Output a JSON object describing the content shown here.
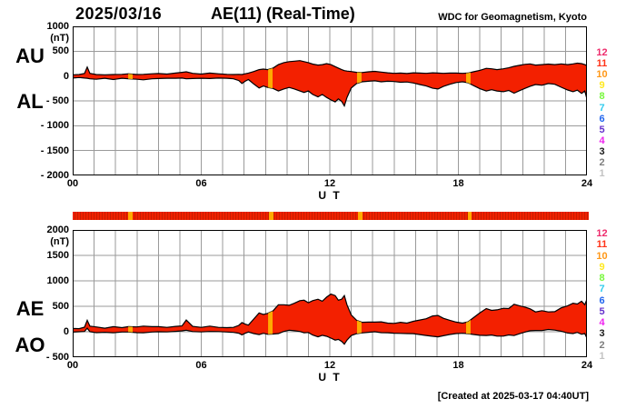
{
  "header": {
    "date": "2025/03/16",
    "title": "AE(11) (Real-Time)",
    "source": "WDC for Geomagnetism, Kyoto"
  },
  "footer": {
    "created": "[Created at 2025-03-17 04:40UT]"
  },
  "stations": {
    "labels": [
      "12",
      "11",
      "10",
      "9",
      "8",
      "7",
      "6",
      "5",
      "4",
      "3",
      "2",
      "1"
    ],
    "colors": [
      "#ee2c6c",
      "#ff3318",
      "#ff9818",
      "#ffe920",
      "#77f73c",
      "#33ccee",
      "#2266ee",
      "#6633cc",
      "#ee22ee",
      "#1a1a1a",
      "#7e7e7e",
      "#c2c2c2"
    ]
  },
  "colors": {
    "trace_fill": "#f32000",
    "trace_outline": "#000000",
    "flag": "#ffaa00",
    "grid": "#9a9a9a",
    "border": "#000000",
    "bar": "#ee2100"
  },
  "chart_data": [
    {
      "type": "area",
      "panel": "top",
      "left_labels": [
        "AU",
        "AL"
      ],
      "ylabel": "(nT)",
      "xlabel": "U T",
      "xlim": [
        0,
        24
      ],
      "ylim": [
        -2000,
        1000
      ],
      "grid": true,
      "xticks": {
        "values": [
          0,
          6,
          12,
          18,
          24
        ],
        "labels": [
          "00",
          "06",
          "12",
          "18",
          "24"
        ]
      },
      "minor_x_step_hours": 1,
      "yticks": {
        "values": [
          1000,
          500,
          0,
          -500,
          -1000,
          -1500,
          -2000
        ],
        "labels": [
          "1000",
          "500",
          "0",
          "- 500",
          "- 1000",
          "- 1500",
          "- 2000"
        ]
      },
      "highlight_times": [
        [
          2.59,
          2.8
        ],
        [
          9.12,
          9.33
        ],
        [
          13.27,
          13.48
        ],
        [
          18.36,
          18.57
        ]
      ],
      "x": [
        0.0,
        0.3,
        0.55,
        0.68,
        0.8,
        1.1,
        1.5,
        1.9,
        2.3,
        2.6,
        3.0,
        3.3,
        3.7,
        4.0,
        4.4,
        4.8,
        5.1,
        5.3,
        5.6,
        6.0,
        6.4,
        6.8,
        7.2,
        7.5,
        7.75,
        7.9,
        8.05,
        8.2,
        8.45,
        8.7,
        8.9,
        9.1,
        9.35,
        9.6,
        9.85,
        10.1,
        10.35,
        10.6,
        10.8,
        11.0,
        11.2,
        11.45,
        11.65,
        11.85,
        12.05,
        12.25,
        12.4,
        12.55,
        12.68,
        12.8,
        13.0,
        13.25,
        13.5,
        13.8,
        14.1,
        14.4,
        14.7,
        15.0,
        15.3,
        15.6,
        15.9,
        16.2,
        16.5,
        16.8,
        17.05,
        17.3,
        17.6,
        17.9,
        18.2,
        18.45,
        18.7,
        19.0,
        19.3,
        19.55,
        19.8,
        20.1,
        20.35,
        20.6,
        20.85,
        21.1,
        21.35,
        21.6,
        21.9,
        22.2,
        22.5,
        22.8,
        23.1,
        23.35,
        23.55,
        23.75,
        23.9,
        24.0
      ],
      "series": [
        {
          "name": "AU",
          "values": [
            25,
            30,
            50,
            180,
            55,
            30,
            25,
            30,
            35,
            45,
            30,
            35,
            45,
            50,
            40,
            60,
            75,
            85,
            55,
            40,
            60,
            45,
            35,
            30,
            35,
            30,
            45,
            60,
            90,
            130,
            140,
            130,
            160,
            230,
            270,
            290,
            300,
            310,
            290,
            270,
            240,
            220,
            230,
            250,
            230,
            190,
            160,
            130,
            110,
            100,
            90,
            75,
            70,
            85,
            95,
            80,
            65,
            55,
            60,
            50,
            65,
            60,
            55,
            65,
            60,
            55,
            60,
            60,
            55,
            60,
            85,
            115,
            155,
            145,
            130,
            145,
            165,
            195,
            215,
            235,
            245,
            220,
            230,
            240,
            230,
            245,
            230,
            245,
            260,
            250,
            230,
            210
          ]
        },
        {
          "name": "AL",
          "values": [
            -40,
            -30,
            -40,
            -45,
            -55,
            -65,
            -45,
            -70,
            -45,
            -55,
            -65,
            -75,
            -55,
            -50,
            -45,
            -45,
            -40,
            -55,
            -50,
            -45,
            -50,
            -40,
            -45,
            -55,
            -90,
            -150,
            -105,
            -70,
            -160,
            -240,
            -200,
            -230,
            -250,
            -300,
            -260,
            -230,
            -260,
            -300,
            -330,
            -300,
            -370,
            -420,
            -370,
            -430,
            -480,
            -520,
            -460,
            -510,
            -600,
            -430,
            -240,
            -150,
            -115,
            -105,
            -95,
            -115,
            -105,
            -110,
            -125,
            -120,
            -140,
            -170,
            -200,
            -245,
            -260,
            -210,
            -165,
            -130,
            -115,
            -135,
            -190,
            -255,
            -300,
            -275,
            -300,
            -315,
            -290,
            -345,
            -295,
            -250,
            -205,
            -170,
            -185,
            -150,
            -165,
            -225,
            -280,
            -315,
            -285,
            -350,
            -300,
            -460
          ]
        }
      ]
    },
    {
      "type": "area",
      "panel": "bottom",
      "left_labels": [
        "AE",
        "AO"
      ],
      "ylabel": "(nT)",
      "xlabel": "U T",
      "xlim": [
        0,
        24
      ],
      "ylim": [
        -500,
        2000
      ],
      "grid": true,
      "xticks": {
        "values": [
          0,
          6,
          12,
          18,
          24
        ],
        "labels": [
          "00",
          "06",
          "12",
          "18",
          "24"
        ]
      },
      "minor_x_step_hours": 1,
      "yticks": {
        "values": [
          2000,
          1500,
          1000,
          500,
          0,
          -500
        ],
        "labels": [
          "2000",
          "1500",
          "1000",
          "500",
          "0",
          "- 500"
        ]
      },
      "highlight_times": [
        [
          2.59,
          2.8
        ],
        [
          9.12,
          9.33
        ],
        [
          13.27,
          13.48
        ],
        [
          18.36,
          18.57
        ]
      ],
      "x": [
        0.0,
        0.3,
        0.55,
        0.68,
        0.8,
        1.1,
        1.5,
        1.9,
        2.3,
        2.6,
        3.0,
        3.3,
        3.7,
        4.0,
        4.4,
        4.8,
        5.1,
        5.3,
        5.6,
        6.0,
        6.4,
        6.8,
        7.2,
        7.5,
        7.75,
        7.9,
        8.05,
        8.2,
        8.45,
        8.7,
        8.9,
        9.1,
        9.35,
        9.6,
        9.85,
        10.1,
        10.35,
        10.6,
        10.8,
        11.0,
        11.2,
        11.45,
        11.65,
        11.85,
        12.05,
        12.25,
        12.4,
        12.55,
        12.68,
        12.8,
        13.0,
        13.25,
        13.5,
        13.8,
        14.1,
        14.4,
        14.7,
        15.0,
        15.3,
        15.6,
        15.9,
        16.2,
        16.5,
        16.8,
        17.05,
        17.3,
        17.6,
        17.9,
        18.2,
        18.45,
        18.7,
        19.0,
        19.3,
        19.55,
        19.8,
        20.1,
        20.35,
        20.6,
        20.85,
        21.1,
        21.35,
        21.6,
        21.9,
        22.2,
        22.5,
        22.8,
        23.1,
        23.35,
        23.55,
        23.75,
        23.9,
        24.0
      ],
      "series": [
        {
          "name": "AE",
          "values": [
            65,
            60,
            90,
            225,
            110,
            95,
            70,
            100,
            80,
            100,
            95,
            110,
            100,
            100,
            85,
            105,
            115,
            230,
            105,
            85,
            110,
            85,
            80,
            85,
            125,
            180,
            150,
            130,
            250,
            370,
            340,
            360,
            410,
            530,
            530,
            520,
            560,
            610,
            620,
            570,
            610,
            640,
            600,
            680,
            740,
            710,
            620,
            640,
            710,
            530,
            330,
            225,
            185,
            190,
            190,
            195,
            170,
            165,
            185,
            170,
            205,
            230,
            255,
            310,
            320,
            265,
            225,
            190,
            170,
            195,
            275,
            370,
            455,
            420,
            430,
            460,
            455,
            540,
            510,
            485,
            450,
            390,
            415,
            390,
            395,
            470,
            510,
            560,
            545,
            600,
            530,
            640
          ]
        },
        {
          "name": "AO",
          "values": [
            -8,
            0,
            5,
            70,
            0,
            -18,
            -10,
            -20,
            -5,
            -5,
            -18,
            -20,
            -5,
            0,
            -3,
            8,
            18,
            30,
            3,
            -3,
            5,
            3,
            -5,
            -13,
            -28,
            -60,
            -30,
            -5,
            -35,
            -55,
            -30,
            -50,
            -45,
            -35,
            5,
            30,
            20,
            5,
            -20,
            -15,
            -65,
            -100,
            -70,
            -90,
            -125,
            -165,
            -150,
            -190,
            -245,
            -165,
            -75,
            -38,
            -23,
            -10,
            0,
            -18,
            -20,
            -28,
            -33,
            -35,
            -38,
            -55,
            -73,
            -90,
            -100,
            -78,
            -53,
            -35,
            -30,
            -38,
            -53,
            -70,
            -73,
            -65,
            -85,
            -85,
            -63,
            -75,
            -40,
            -8,
            20,
            25,
            23,
            45,
            33,
            10,
            -25,
            -35,
            -13,
            -50,
            -35,
            -125
          ]
        }
      ]
    }
  ]
}
